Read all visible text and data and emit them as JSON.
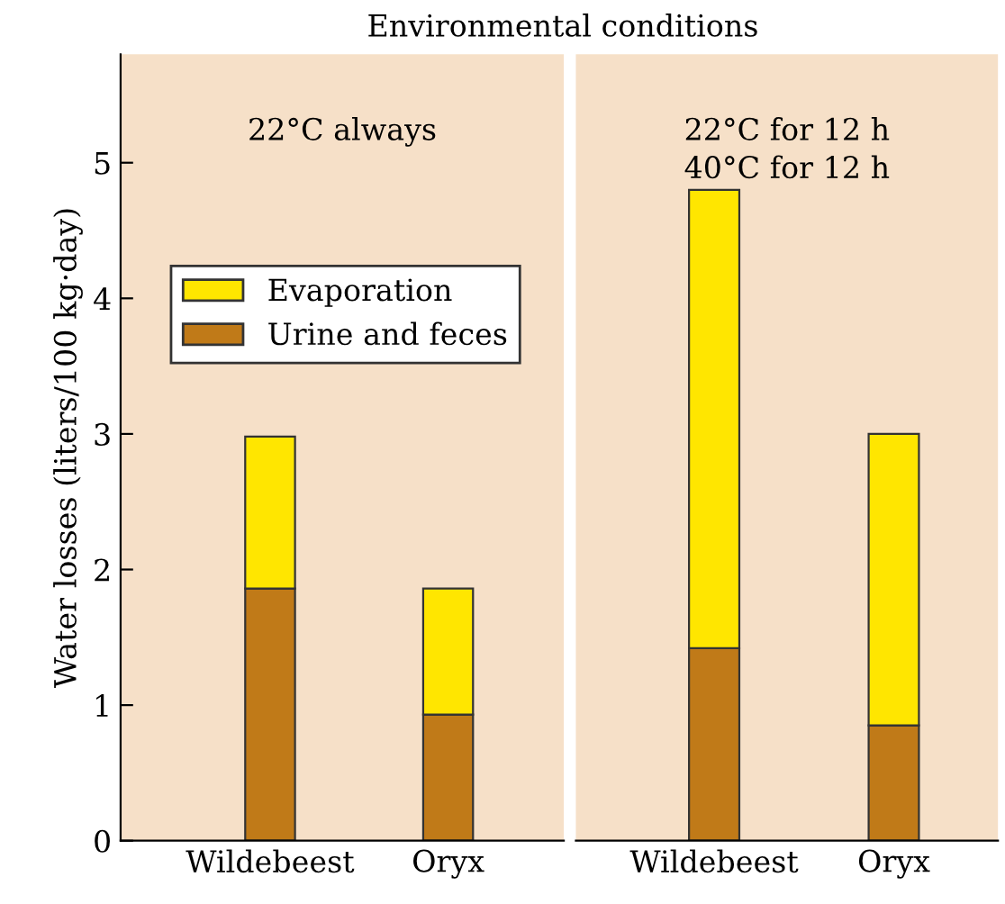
{
  "chart_data": [
    {
      "type": "bar",
      "title": "22°C always",
      "annotations": [
        "Environmental conditions"
      ],
      "ylabel": "Water losses (liters/100 kg·day)",
      "categories": [
        "Wildebeest",
        "Oryx"
      ],
      "stacked": true,
      "ylim": [
        0,
        5.8
      ],
      "yticks": [
        0,
        1,
        2,
        3,
        4,
        5
      ],
      "legend": "upper left",
      "grid": false,
      "series": [
        {
          "name": "Urine and feces",
          "color": "#c07a18",
          "values": [
            1.86,
            0.93
          ]
        },
        {
          "name": "Evaporation",
          "color": "#ffe600",
          "values": [
            1.12,
            0.93
          ]
        }
      ]
    },
    {
      "type": "bar",
      "title": "22°C for 12 h\n40°C for 12 h",
      "categories": [
        "Wildebeest",
        "Oryx"
      ],
      "stacked": true,
      "ylim": [
        0,
        5.8
      ],
      "tick_labels": "x",
      "legend": false,
      "grid": false,
      "series": [
        {
          "color": "#c07a18",
          "values": [
            1.42,
            0.85
          ]
        },
        {
          "color": "#ffe600",
          "values": [
            3.38,
            2.15
          ]
        }
      ]
    }
  ]
}
